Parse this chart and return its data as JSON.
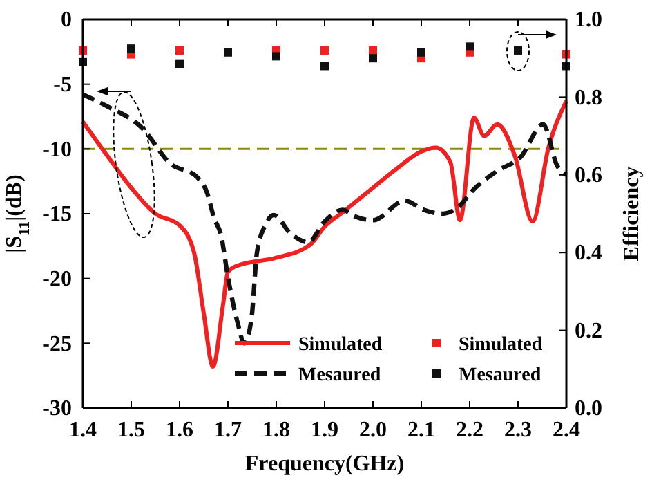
{
  "chart_data": {
    "type": "line",
    "xlabel": "Frequency(GHz)",
    "ylabel": "|S$_{11}$|(dB)",
    "y2label": "Efficiency",
    "x": [
      1.4,
      1.45,
      1.5,
      1.55,
      1.6,
      1.63,
      1.65,
      1.669,
      1.69,
      1.7,
      1.72,
      1.8,
      1.87,
      1.9,
      1.937,
      2.0,
      2.05,
      2.1,
      2.13,
      2.16,
      2.18,
      2.209,
      2.23,
      2.257,
      2.294,
      2.33,
      2.363,
      2.4
    ],
    "xlim": [
      1.4,
      2.4
    ],
    "xticks": [
      {
        "value": 1.4,
        "label": "1.4"
      },
      {
        "value": 1.5,
        "label": "1.5"
      },
      {
        "value": 1.6,
        "label": "1.6"
      },
      {
        "value": 1.7,
        "label": "1.7"
      },
      {
        "value": 1.8,
        "label": "1.8"
      },
      {
        "value": 1.9,
        "label": "1.9"
      },
      {
        "value": 2.0,
        "label": "2.0"
      },
      {
        "value": 2.1,
        "label": "2.1"
      },
      {
        "value": 2.2,
        "label": "2.2"
      },
      {
        "value": 2.3,
        "label": "2.3"
      },
      {
        "value": 2.4,
        "label": "2.4"
      }
    ],
    "ylim": [
      -30,
      0
    ],
    "yticks": [
      -30,
      -25,
      -20,
      -15,
      -10,
      -5,
      0
    ],
    "y2lim": [
      0,
      1
    ],
    "y2ticks": [
      {
        "value": 0,
        "label": "0.0"
      },
      0.2,
      0.4,
      0.6,
      0.8,
      {
        "value": 1,
        "label": "1.0"
      }
    ],
    "series": [
      {
        "name": "Simulated",
        "color": "#ee2222",
        "line_style": "solid",
        "values": [
          -7.9,
          -10.5,
          -13,
          -15,
          -15.9,
          -18,
          -22.7,
          -26.8,
          -22,
          -19.5,
          -19,
          -18.4,
          -17.4,
          -16,
          -14.9,
          -13,
          -11.5,
          -10.2,
          -9.9,
          -11,
          -15.5,
          -7.6,
          -9,
          -8.1,
          -10.6,
          -15.6,
          -9.9,
          -6.3
        ]
      },
      {
        "name": "Mesaured",
        "color": "#111111",
        "line_style": "dashed",
        "x": [
          1.4,
          1.45,
          1.523,
          1.58,
          1.637,
          1.657,
          1.671,
          1.686,
          1.7,
          1.72,
          1.734,
          1.749,
          1.76,
          1.777,
          1.795,
          1.829,
          1.866,
          1.9,
          1.937,
          1.962,
          2.0,
          2.066,
          2.105,
          2.143,
          2.176,
          2.209,
          2.257,
          2.306,
          2.352,
          2.381,
          2.4
        ],
        "values": [
          -5.8,
          -6.7,
          -8.4,
          -11.1,
          -12.2,
          -13.4,
          -15.3,
          -16.7,
          -19.9,
          -23.4,
          -25,
          -23,
          -18,
          -15.9,
          -15.1,
          -16.5,
          -17.2,
          -15.6,
          -14.7,
          -15.2,
          -15.5,
          -14,
          -14.7,
          -15,
          -14.5,
          -13.1,
          -11.7,
          -10.6,
          -8.1,
          -11.3,
          -12
        ]
      },
      {
        "name": "Simulated",
        "type": "scatter",
        "axis": "y2",
        "marker": "square",
        "color": "#ee2222",
        "x": [
          1.4,
          1.5,
          1.6,
          1.7,
          1.8,
          1.9,
          2.0,
          2.1,
          2.2,
          2.3,
          2.4
        ],
        "values": [
          0.92,
          0.91,
          0.92,
          null,
          0.92,
          0.92,
          0.92,
          0.9,
          0.915,
          null,
          0.91
        ]
      },
      {
        "name": "Mesaured",
        "type": "scatter",
        "axis": "y2",
        "marker": "square",
        "color": "#111111",
        "x": [
          1.4,
          1.5,
          1.6,
          1.7,
          1.8,
          1.9,
          2.0,
          2.1,
          2.2,
          2.3,
          2.4
        ],
        "values": [
          0.89,
          0.925,
          0.885,
          0.915,
          0.905,
          0.88,
          0.9,
          0.915,
          0.93,
          0.92,
          0.88
        ]
      }
    ],
    "ref_lines": [
      {
        "axis": "y",
        "value": -10,
        "color": "#8a8a10",
        "line_style": "dashed"
      }
    ],
    "legend": "bottom right",
    "grid": false
  }
}
